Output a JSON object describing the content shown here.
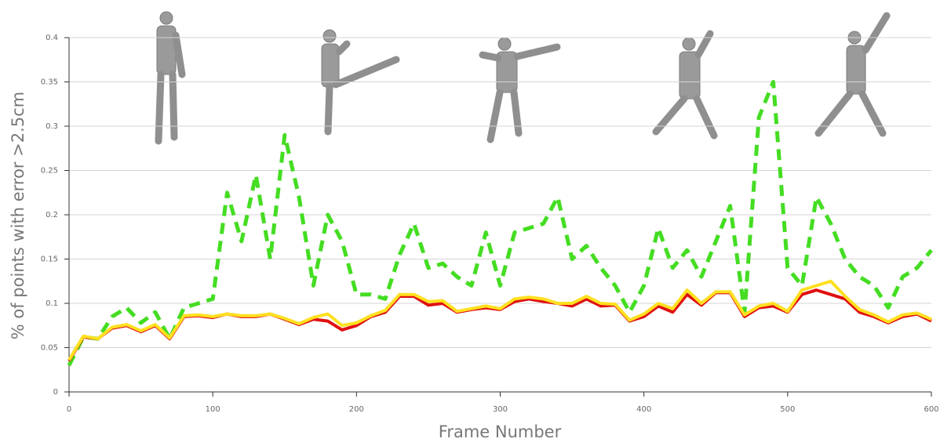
{
  "chart_data": {
    "type": "line",
    "ylabel": "% of points with error >2.5cm",
    "xlabel": "Frame Number",
    "xlim": [
      0,
      600
    ],
    "xticks": [
      0,
      100,
      200,
      300,
      400,
      500,
      600
    ],
    "ylim": [
      0,
      0.4
    ],
    "yticks": [
      0,
      0.05,
      0.1,
      0.15,
      0.2,
      0.25,
      0.3,
      0.35,
      0.4
    ],
    "grid": true,
    "x": [
      0,
      10,
      20,
      30,
      40,
      50,
      60,
      70,
      80,
      90,
      100,
      110,
      120,
      130,
      140,
      150,
      160,
      170,
      180,
      190,
      200,
      210,
      220,
      230,
      240,
      250,
      260,
      270,
      280,
      290,
      300,
      310,
      320,
      330,
      340,
      350,
      360,
      370,
      380,
      390,
      400,
      410,
      420,
      430,
      440,
      450,
      460,
      470,
      480,
      490,
      500,
      510,
      520,
      530,
      540,
      550,
      560,
      570,
      580,
      590,
      600
    ],
    "series": [
      {
        "color": "#44dd22",
        "dashed": true,
        "values": [
          0.03,
          0.062,
          0.06,
          0.085,
          0.095,
          0.078,
          0.09,
          0.06,
          0.095,
          0.1,
          0.105,
          0.225,
          0.17,
          0.245,
          0.15,
          0.29,
          0.22,
          0.12,
          0.2,
          0.17,
          0.11,
          0.11,
          0.105,
          0.155,
          0.19,
          0.14,
          0.145,
          0.13,
          0.12,
          0.18,
          0.12,
          0.18,
          0.185,
          0.19,
          0.22,
          0.15,
          0.165,
          0.14,
          0.12,
          0.09,
          0.12,
          0.185,
          0.14,
          0.16,
          0.13,
          0.17,
          0.21,
          0.09,
          0.31,
          0.35,
          0.14,
          0.12,
          0.22,
          0.19,
          0.15,
          0.13,
          0.12,
          0.095,
          0.13,
          0.14,
          0.16
        ]
      },
      {
        "color": "#e01010",
        "dashed": false,
        "values": [
          0.035,
          0.062,
          0.06,
          0.072,
          0.075,
          0.068,
          0.075,
          0.06,
          0.085,
          0.086,
          0.084,
          0.088,
          0.085,
          0.085,
          0.088,
          0.082,
          0.076,
          0.082,
          0.08,
          0.07,
          0.075,
          0.085,
          0.09,
          0.108,
          0.108,
          0.098,
          0.1,
          0.09,
          0.093,
          0.095,
          0.093,
          0.102,
          0.105,
          0.102,
          0.1,
          0.097,
          0.105,
          0.097,
          0.098,
          0.08,
          0.085,
          0.097,
          0.09,
          0.11,
          0.098,
          0.112,
          0.112,
          0.085,
          0.095,
          0.097,
          0.09,
          0.11,
          0.115,
          0.11,
          0.105,
          0.09,
          0.085,
          0.078,
          0.085,
          0.088,
          0.08
        ]
      },
      {
        "color": "#ffe020",
        "dashed": false,
        "values": [
          0.036,
          0.063,
          0.06,
          0.073,
          0.076,
          0.069,
          0.076,
          0.061,
          0.086,
          0.087,
          0.085,
          0.088,
          0.086,
          0.086,
          0.088,
          0.083,
          0.077,
          0.084,
          0.088,
          0.075,
          0.078,
          0.086,
          0.092,
          0.11,
          0.11,
          0.102,
          0.103,
          0.091,
          0.094,
          0.097,
          0.094,
          0.105,
          0.107,
          0.105,
          0.1,
          0.1,
          0.108,
          0.1,
          0.099,
          0.081,
          0.088,
          0.1,
          0.094,
          0.115,
          0.1,
          0.113,
          0.113,
          0.087,
          0.097,
          0.1,
          0.091,
          0.115,
          0.12,
          0.125,
          0.108,
          0.093,
          0.087,
          0.079,
          0.087,
          0.089,
          0.082
        ]
      }
    ]
  }
}
